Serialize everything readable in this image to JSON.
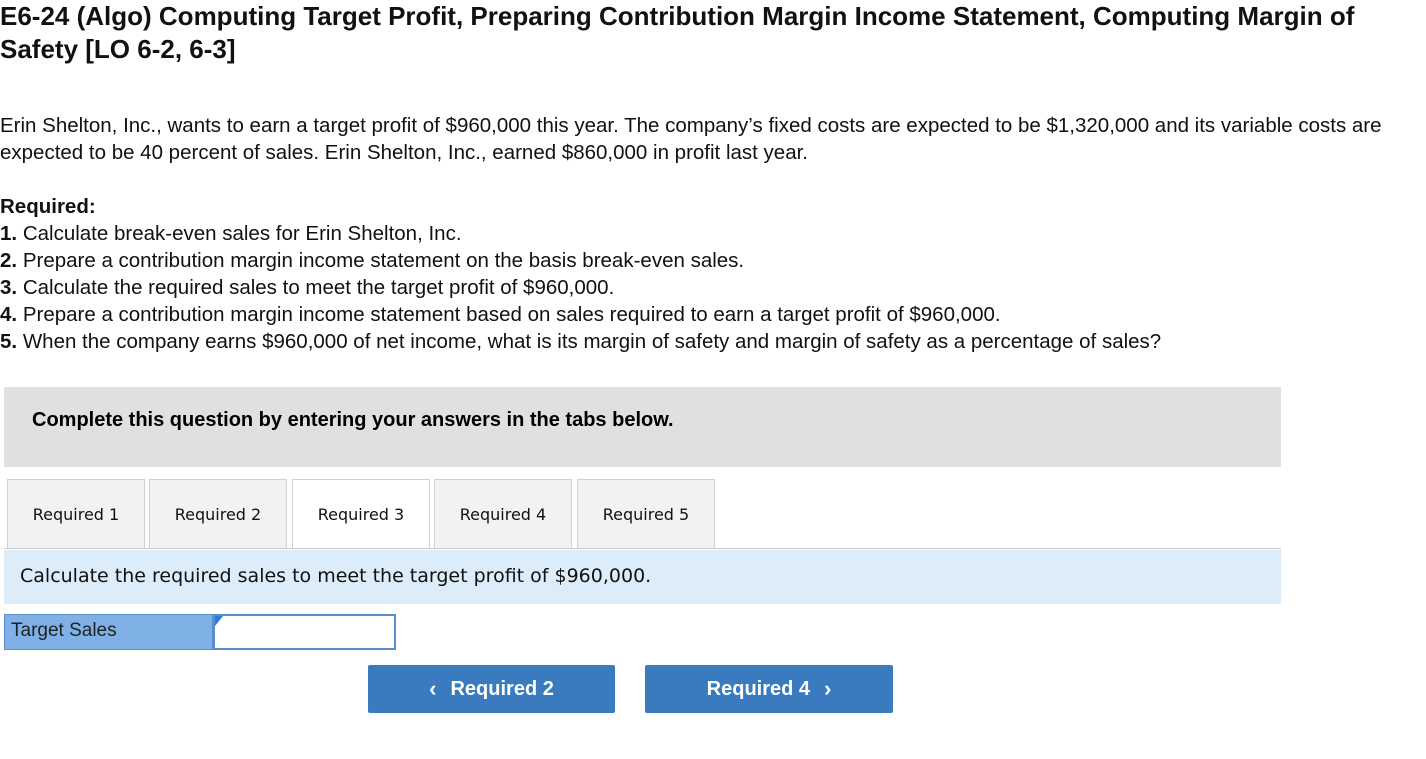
{
  "problem": {
    "title": "E6-24 (Algo) Computing Target Profit, Preparing Contribution Margin Income Statement, Computing Margin of Safety [LO 6-2, 6-3]",
    "intro": "Erin Shelton, Inc., wants to earn a target profit of $960,000 this year. The company’s fixed costs are expected to be $1,320,000 and its variable costs are expected to be 40 percent of sales. Erin Shelton, Inc., earned $860,000 in profit last year.",
    "required_heading": "Required:",
    "requirements": [
      {
        "num": "1.",
        "text": "Calculate break-even sales for Erin Shelton, Inc."
      },
      {
        "num": "2.",
        "text": "Prepare a contribution margin income statement on the basis break-even sales."
      },
      {
        "num": "3.",
        "text": "Calculate the required sales to meet the target profit of $960,000."
      },
      {
        "num": "4.",
        "text": "Prepare a contribution margin income statement based on sales required to earn a target profit of $960,000."
      },
      {
        "num": "5.",
        "text": "When the company earns $960,000 of net income, what is its margin of safety and margin of safety as a percentage of sales?"
      }
    ]
  },
  "banner": {
    "text": "Complete this question by entering your answers in the tabs below."
  },
  "tabs": [
    {
      "label": "Required 1",
      "active": false
    },
    {
      "label": "Required 2",
      "active": false
    },
    {
      "label": "Required 3",
      "active": true
    },
    {
      "label": "Required 4",
      "active": false
    },
    {
      "label": "Required 5",
      "active": false
    }
  ],
  "instruction": "Calculate the required sales to meet the target profit of $960,000.",
  "answer": {
    "label": "Target Sales",
    "value": ""
  },
  "nav": {
    "prev_label": "Required 2",
    "next_label": "Required 4",
    "prev_icon": "chevron-left-icon",
    "next_icon": "chevron-right-icon"
  },
  "colors": {
    "accent_button": "#3a7bbf",
    "instruction_bg": "#dcedf9",
    "label_bg": "#7fb0e6",
    "banner_bg": "#e0e0e0"
  }
}
